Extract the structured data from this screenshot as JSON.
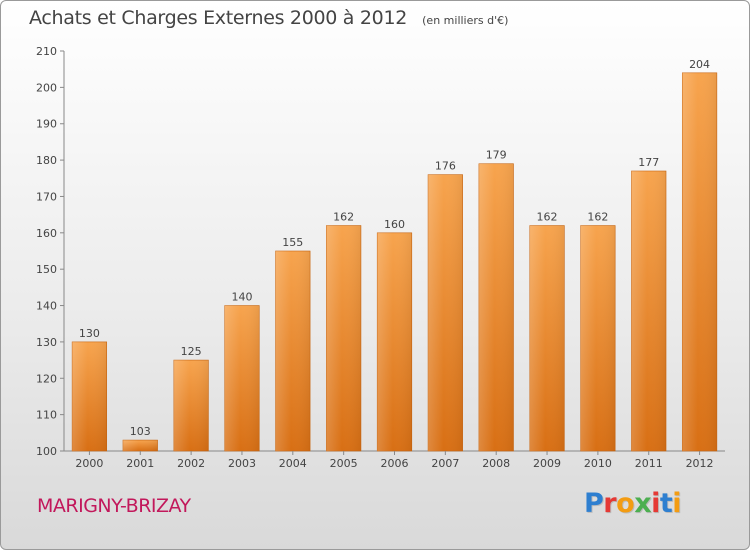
{
  "header": {
    "title": "Achats et Charges Externes 2000 à 2012",
    "unit": "(en milliers d'€)"
  },
  "footer": {
    "commune": "MARIGNY-BRIZAY",
    "logo": "Proxiti",
    "logo_colors": [
      "#2e7fd0",
      "#e53935",
      "#f39c12",
      "#4caf50",
      "#e53935",
      "#2e7fd0",
      "#f39c12"
    ]
  },
  "colors": {
    "bar_top": "#f7a44e",
    "bar_bottom": "#d86f14",
    "commune": "#c2185b"
  },
  "chart_data": {
    "type": "bar",
    "categories": [
      "2000",
      "2001",
      "2002",
      "2003",
      "2004",
      "2005",
      "2006",
      "2007",
      "2008",
      "2009",
      "2010",
      "2011",
      "2012"
    ],
    "values": [
      130,
      103,
      125,
      140,
      155,
      162,
      160,
      176,
      179,
      162,
      162,
      177,
      204
    ],
    "ylim": [
      100,
      210
    ],
    "yticks": [
      100,
      110,
      120,
      130,
      140,
      150,
      160,
      170,
      180,
      190,
      200,
      210
    ],
    "grid": false,
    "legend": "none"
  }
}
